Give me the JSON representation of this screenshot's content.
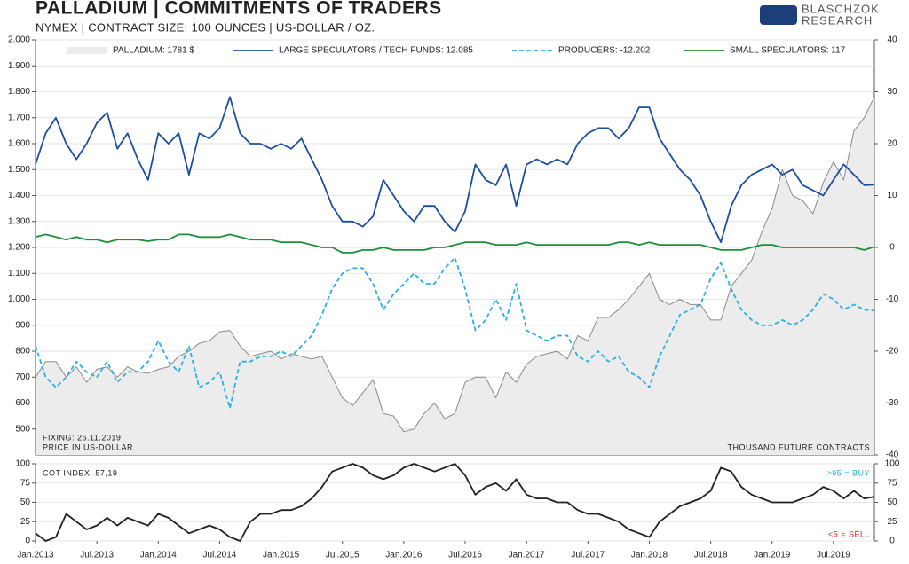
{
  "logo": [
    "BLASCHZOK",
    "RESEARCH"
  ],
  "chart_data": [
    {
      "type": "line",
      "title": "PALLADIUM | COMMITMENTS OF TRADERS",
      "subtitle": "NYMEX | CONTRACT SIZE: 100 OUNCES | US-DOLLAR / OZ.",
      "annotations": [
        "FIXING: 26.11.2019",
        "PRICE IN US-DOLLAR",
        "THOUSAND FUTURE CONTRACTS"
      ],
      "x": [
        "2013-01",
        "2013-02",
        "2013-03",
        "2013-04",
        "2013-05",
        "2013-06",
        "2013-07",
        "2013-08",
        "2013-09",
        "2013-10",
        "2013-11",
        "2013-12",
        "2014-01",
        "2014-02",
        "2014-03",
        "2014-04",
        "2014-05",
        "2014-06",
        "2014-07",
        "2014-08",
        "2014-09",
        "2014-10",
        "2014-11",
        "2014-12",
        "2015-01",
        "2015-02",
        "2015-03",
        "2015-04",
        "2015-05",
        "2015-06",
        "2015-07",
        "2015-08",
        "2015-09",
        "2015-10",
        "2015-11",
        "2015-12",
        "2016-01",
        "2016-02",
        "2016-03",
        "2016-04",
        "2016-05",
        "2016-06",
        "2016-07",
        "2016-08",
        "2016-09",
        "2016-10",
        "2016-11",
        "2016-12",
        "2017-01",
        "2017-02",
        "2017-03",
        "2017-04",
        "2017-05",
        "2017-06",
        "2017-07",
        "2017-08",
        "2017-09",
        "2017-10",
        "2017-11",
        "2017-12",
        "2018-01",
        "2018-02",
        "2018-03",
        "2018-04",
        "2018-05",
        "2018-06",
        "2018-07",
        "2018-08",
        "2018-09",
        "2018-10",
        "2018-11",
        "2018-12",
        "2019-01",
        "2019-02",
        "2019-03",
        "2019-04",
        "2019-05",
        "2019-06",
        "2019-07",
        "2019-08",
        "2019-09",
        "2019-10",
        "2019-11"
      ],
      "xlim": [
        "2013-01",
        "2019-11"
      ],
      "ylim": [
        400,
        2000
      ],
      "yticks": [
        500,
        600,
        700,
        800,
        900,
        {
          "value": 1000,
          "label": "1.000"
        },
        {
          "value": 1100,
          "label": "1.100"
        },
        {
          "value": 1200,
          "label": "1.200"
        },
        {
          "value": 1300,
          "label": "1.300"
        },
        {
          "value": 1400,
          "label": "1.400"
        },
        {
          "value": 1500,
          "label": "1.500"
        },
        {
          "value": 1600,
          "label": "1.600"
        },
        {
          "value": 1700,
          "label": "1.700"
        },
        {
          "value": 1800,
          "label": "1.800"
        },
        {
          "value": 1900,
          "label": "1.900"
        },
        {
          "value": 2000,
          "label": "2.000"
        }
      ],
      "y2lim": [
        -40,
        40
      ],
      "y2ticks": [
        -40,
        -30,
        -20,
        -10,
        0,
        10,
        20,
        30,
        40
      ],
      "grid": true,
      "series": [
        {
          "name": "PALLADIUM: 1781 $",
          "color": "#8a8a8a",
          "fill": "#ececec",
          "area": true,
          "axis": "y",
          "values": [
            700,
            760,
            760,
            700,
            740,
            680,
            730,
            740,
            700,
            740,
            720,
            715,
            730,
            740,
            780,
            800,
            830,
            840,
            875,
            880,
            820,
            780,
            790,
            800,
            770,
            790,
            780,
            770,
            780,
            700,
            620,
            590,
            640,
            690,
            560,
            550,
            490,
            500,
            560,
            600,
            540,
            560,
            680,
            700,
            700,
            620,
            720,
            680,
            750,
            780,
            790,
            800,
            770,
            860,
            840,
            930,
            930,
            960,
            1000,
            1050,
            1100,
            1000,
            980,
            1000,
            980,
            980,
            920,
            920,
            1050,
            1100,
            1150,
            1260,
            1350,
            1500,
            1400,
            1380,
            1330,
            1450,
            1530,
            1460,
            1650,
            1700,
            1781
          ]
        },
        {
          "name": "LARGE SPECULATORS / TECH FUNDS: 12.085",
          "color": "#1c4fa0",
          "axis": "y2",
          "values": [
            16,
            22,
            25,
            20,
            17,
            20,
            24,
            26,
            19,
            22,
            17,
            13,
            22,
            20,
            22,
            14,
            22,
            21,
            23,
            29,
            22,
            20,
            20,
            19,
            20,
            19,
            21,
            17,
            13,
            8,
            5,
            5,
            4,
            6,
            13,
            10,
            7,
            5,
            8,
            8,
            5,
            3,
            7,
            16,
            13,
            12,
            16,
            8,
            16,
            17,
            16,
            17,
            16,
            20,
            22,
            23,
            23,
            21,
            23,
            27,
            27,
            21,
            18,
            15,
            13,
            10,
            5,
            1,
            8,
            12,
            14,
            15,
            16,
            14,
            15,
            12,
            11,
            10,
            13,
            16,
            14,
            12,
            12.085
          ]
        },
        {
          "name": "PRODUCERS: -12.202",
          "color": "#2cb0e2",
          "dashed": true,
          "axis": "y2",
          "values": [
            -19,
            -25,
            -27,
            -25,
            -22,
            -24,
            -25,
            -22,
            -26,
            -24,
            -24,
            -22,
            -18,
            -22,
            -24,
            -19,
            -27,
            -26,
            -24,
            -31,
            -22,
            -22,
            -21,
            -21,
            -20,
            -21,
            -19,
            -17,
            -13,
            -8,
            -5,
            -4,
            -4,
            -7,
            -12,
            -9,
            -7,
            -5,
            -7,
            -7,
            -4,
            -2,
            -8,
            -16,
            -14,
            -10,
            -14,
            -7,
            -16,
            -17,
            -18,
            -17,
            -17,
            -21,
            -22,
            -20,
            -22,
            -21,
            -24,
            -25,
            -27,
            -21,
            -17,
            -13,
            -12,
            -11,
            -6,
            -3,
            -8,
            -12,
            -14,
            -15,
            -15,
            -14,
            -15,
            -14,
            -12,
            -9,
            -10,
            -12,
            -11,
            -12,
            -12.202
          ]
        },
        {
          "name": "SMALL SPECULATORS: 117",
          "color": "#1f8f3c",
          "axis": "y2",
          "values": [
            2,
            2.5,
            2,
            1.5,
            2,
            1.5,
            1.5,
            1,
            1.5,
            1.5,
            1.5,
            1.2,
            1.5,
            1.5,
            2.5,
            2.5,
            2,
            2,
            2,
            2.5,
            2,
            1.5,
            1.5,
            1.5,
            1,
            1,
            1,
            0.5,
            0,
            0,
            -1,
            -1,
            -0.5,
            -0.5,
            0,
            -0.5,
            -0.5,
            -0.5,
            -0.5,
            0,
            0,
            0.5,
            1,
            1,
            1,
            0.5,
            0.5,
            0.5,
            1,
            0.5,
            0.5,
            0.5,
            0.5,
            0.5,
            0.5,
            0.5,
            0.5,
            1,
            1,
            0.5,
            1,
            0.5,
            0.5,
            0.5,
            0.5,
            0.5,
            0,
            -0.5,
            -0.5,
            -0.5,
            0,
            0.5,
            0.5,
            0,
            0,
            0,
            0,
            0,
            0,
            0,
            0,
            -0.5,
            0.117
          ]
        }
      ]
    },
    {
      "type": "line",
      "annotations": [
        {
          "text": "COT INDEX: 57,19",
          "color": "#222222"
        },
        {
          "text": ">95 = BUY",
          "color": "#2cb0e2"
        },
        {
          "text": "<5 = SELL",
          "color": "#e02020"
        }
      ],
      "x": [
        "2013-01",
        "2013-02",
        "2013-03",
        "2013-04",
        "2013-05",
        "2013-06",
        "2013-07",
        "2013-08",
        "2013-09",
        "2013-10",
        "2013-11",
        "2013-12",
        "2014-01",
        "2014-02",
        "2014-03",
        "2014-04",
        "2014-05",
        "2014-06",
        "2014-07",
        "2014-08",
        "2014-09",
        "2014-10",
        "2014-11",
        "2014-12",
        "2015-01",
        "2015-02",
        "2015-03",
        "2015-04",
        "2015-05",
        "2015-06",
        "2015-07",
        "2015-08",
        "2015-09",
        "2015-10",
        "2015-11",
        "2015-12",
        "2016-01",
        "2016-02",
        "2016-03",
        "2016-04",
        "2016-05",
        "2016-06",
        "2016-07",
        "2016-08",
        "2016-09",
        "2016-10",
        "2016-11",
        "2016-12",
        "2017-01",
        "2017-02",
        "2017-03",
        "2017-04",
        "2017-05",
        "2017-06",
        "2017-07",
        "2017-08",
        "2017-09",
        "2017-10",
        "2017-11",
        "2017-12",
        "2018-01",
        "2018-02",
        "2018-03",
        "2018-04",
        "2018-05",
        "2018-06",
        "2018-07",
        "2018-08",
        "2018-09",
        "2018-10",
        "2018-11",
        "2018-12",
        "2019-01",
        "2019-02",
        "2019-03",
        "2019-04",
        "2019-05",
        "2019-06",
        "2019-07",
        "2019-08",
        "2019-09",
        "2019-10",
        "2019-11"
      ],
      "xlim": [
        "2013-01",
        "2019-11"
      ],
      "xticks": [
        {
          "value": "2013-01",
          "label": "Jan.2013"
        },
        {
          "value": "2013-07",
          "label": "Jul.2013"
        },
        {
          "value": "2014-01",
          "label": "Jan.2014"
        },
        {
          "value": "2014-07",
          "label": "Jul.2014"
        },
        {
          "value": "2015-01",
          "label": "Jan.2015"
        },
        {
          "value": "2015-07",
          "label": "Jul.2015"
        },
        {
          "value": "2016-01",
          "label": "Jan.2016"
        },
        {
          "value": "2016-07",
          "label": "Jul.2016"
        },
        {
          "value": "2017-01",
          "label": "Jan.2017"
        },
        {
          "value": "2017-07",
          "label": "Jul.2017"
        },
        {
          "value": "2018-01",
          "label": "Jan.2018"
        },
        {
          "value": "2018-07",
          "label": "Jul.2018"
        },
        {
          "value": "2019-01",
          "label": "Jan.2019"
        },
        {
          "value": "2019-07",
          "label": "Jul.2019"
        }
      ],
      "ylim": [
        0,
        100
      ],
      "yticks": [
        0,
        25,
        50,
        75,
        100
      ],
      "y2lim": [
        0,
        100
      ],
      "y2ticks": [
        0,
        25,
        50,
        75,
        100
      ],
      "grid": true,
      "series": [
        {
          "name": "COT INDEX",
          "color": "#222222",
          "axis": "y",
          "values": [
            10,
            0,
            5,
            35,
            25,
            15,
            20,
            30,
            20,
            30,
            25,
            20,
            35,
            30,
            20,
            10,
            15,
            20,
            15,
            5,
            0,
            25,
            35,
            35,
            40,
            40,
            45,
            55,
            70,
            90,
            95,
            100,
            95,
            85,
            80,
            85,
            95,
            100,
            95,
            90,
            95,
            100,
            85,
            60,
            70,
            75,
            65,
            80,
            60,
            55,
            55,
            50,
            50,
            40,
            35,
            35,
            30,
            25,
            15,
            10,
            5,
            25,
            35,
            45,
            50,
            55,
            65,
            95,
            90,
            70,
            60,
            55,
            50,
            50,
            50,
            55,
            60,
            70,
            65,
            55,
            65,
            55,
            57.19
          ]
        }
      ]
    }
  ]
}
